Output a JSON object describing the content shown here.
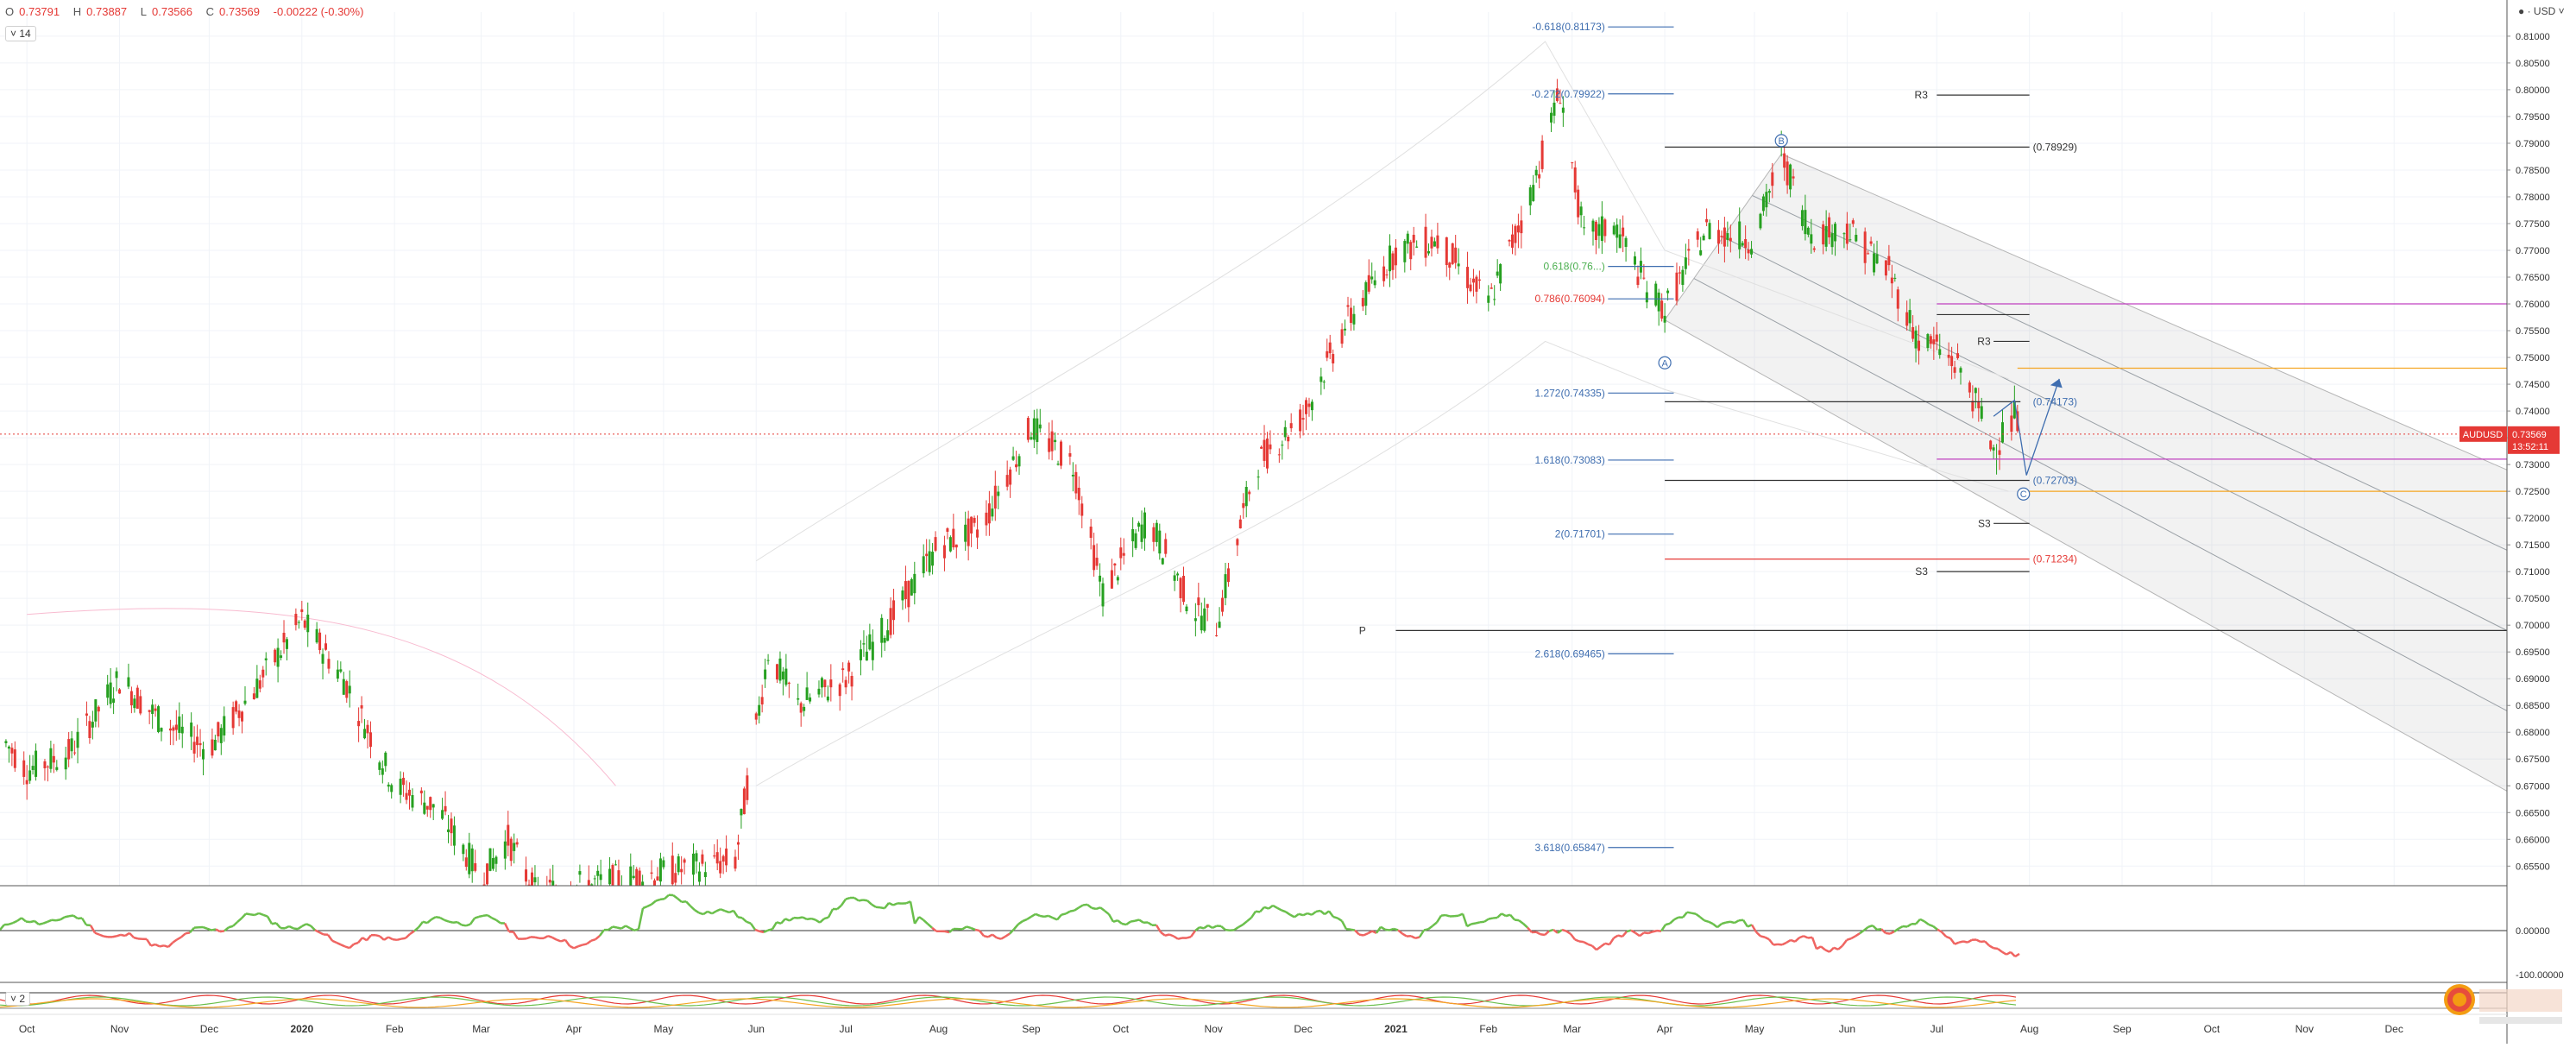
{
  "header": {
    "ohlc": [
      {
        "k": "O",
        "v": "0.73791"
      },
      {
        "k": "H",
        "v": "0.73887"
      },
      {
        "k": "L",
        "v": "0.73566"
      },
      {
        "k": "C",
        "v": "0.73569"
      }
    ],
    "change": "-0.00222 (-0.30%)",
    "indicator_period": "14",
    "indicator2_period": "2",
    "currency": "USD"
  },
  "chart_data": {
    "type": "line",
    "symbol": "AUDUSD",
    "last_price": "0.73569",
    "countdown": "13:52:11",
    "y_ticks": [
      "0.81000",
      "0.80500",
      "0.80000",
      "0.79500",
      "0.79000",
      "0.78500",
      "0.78000",
      "0.77500",
      "0.77000",
      "0.76500",
      "0.76000",
      "0.75500",
      "0.75000",
      "0.74500",
      "0.74000",
      "0.73500",
      "0.73000",
      "0.72500",
      "0.72000",
      "0.71500",
      "0.71000",
      "0.70500",
      "0.70000",
      "0.69500",
      "0.69000",
      "0.68500",
      "0.68000",
      "0.67500",
      "0.67000",
      "0.66500",
      "0.66000",
      "0.65500"
    ],
    "ylim": [
      0.6515,
      0.8145
    ],
    "x_ticks": [
      "Oct",
      "Nov",
      "Dec",
      "2020",
      "Feb",
      "Mar",
      "Apr",
      "May",
      "Jun",
      "Jul",
      "Aug",
      "Sep",
      "Oct",
      "Nov",
      "Dec",
      "2021",
      "Feb",
      "Mar",
      "Apr",
      "May",
      "Jun",
      "Jul",
      "Aug",
      "Sep",
      "Oct",
      "Nov",
      "Dec"
    ],
    "x_tick_dates": [
      "2019-10",
      "2019-11",
      "2019-12",
      "2020-01",
      "2020-02",
      "2020-03",
      "2020-04",
      "2020-05",
      "2020-06",
      "2020-07",
      "2020-08",
      "2020-09",
      "2020-10",
      "2020-11",
      "2020-12",
      "2021-01",
      "2021-02",
      "2021-03",
      "2021-04",
      "2021-05",
      "2021-06",
      "2021-07",
      "2021-08",
      "2021-09",
      "2021-10",
      "2021-11",
      "2021-12"
    ],
    "series": [
      {
        "values": [
          {
            "date": "2019-09-24",
            "close": 0.678
          },
          {
            "date": "2019-10-01",
            "close": 0.673
          },
          {
            "date": "2019-10-15",
            "close": 0.676
          },
          {
            "date": "2019-11-01",
            "close": 0.69
          },
          {
            "date": "2019-11-15",
            "close": 0.682
          },
          {
            "date": "2019-12-01",
            "close": 0.677
          },
          {
            "date": "2019-12-15",
            "close": 0.687
          },
          {
            "date": "2020-01-01",
            "close": 0.701
          },
          {
            "date": "2020-01-15",
            "close": 0.69
          },
          {
            "date": "2020-02-01",
            "close": 0.67
          },
          {
            "date": "2020-02-15",
            "close": 0.666
          },
          {
            "date": "2020-03-01",
            "close": 0.653
          },
          {
            "date": "2020-03-10",
            "close": 0.66
          },
          {
            "date": "2020-03-19",
            "close": 0.65
          },
          {
            "date": "2020-05-25",
            "close": 0.656
          },
          {
            "date": "2020-06-05",
            "close": 0.695
          },
          {
            "date": "2020-06-15",
            "close": 0.685
          },
          {
            "date": "2020-07-01",
            "close": 0.69
          },
          {
            "date": "2020-07-15",
            "close": 0.7
          },
          {
            "date": "2020-08-01",
            "close": 0.715
          },
          {
            "date": "2020-08-15",
            "close": 0.718
          },
          {
            "date": "2020-09-01",
            "close": 0.737
          },
          {
            "date": "2020-09-15",
            "close": 0.73
          },
          {
            "date": "2020-09-25",
            "close": 0.706
          },
          {
            "date": "2020-10-10",
            "close": 0.72
          },
          {
            "date": "2020-10-25",
            "close": 0.703
          },
          {
            "date": "2020-11-02",
            "close": 0.7
          },
          {
            "date": "2020-11-15",
            "close": 0.73
          },
          {
            "date": "2020-12-01",
            "close": 0.739
          },
          {
            "date": "2020-12-15",
            "close": 0.756
          },
          {
            "date": "2021-01-01",
            "close": 0.77
          },
          {
            "date": "2021-01-15",
            "close": 0.772
          },
          {
            "date": "2021-02-01",
            "close": 0.76
          },
          {
            "date": "2021-02-15",
            "close": 0.78
          },
          {
            "date": "2021-02-25",
            "close": 0.8
          },
          {
            "date": "2021-03-05",
            "close": 0.772
          },
          {
            "date": "2021-03-15",
            "close": 0.775
          },
          {
            "date": "2021-03-25",
            "close": 0.764
          },
          {
            "date": "2021-04-01",
            "close": 0.759
          },
          {
            "date": "2021-04-15",
            "close": 0.774
          },
          {
            "date": "2021-05-01",
            "close": 0.772
          },
          {
            "date": "2021-05-10",
            "close": 0.788
          },
          {
            "date": "2021-05-20",
            "close": 0.773
          },
          {
            "date": "2021-06-01",
            "close": 0.774
          },
          {
            "date": "2021-06-15",
            "close": 0.766
          },
          {
            "date": "2021-06-25",
            "close": 0.753
          },
          {
            "date": "2021-07-01",
            "close": 0.752
          },
          {
            "date": "2021-07-10",
            "close": 0.747
          },
          {
            "date": "2021-07-20",
            "close": 0.733
          },
          {
            "date": "2021-07-27",
            "close": 0.739
          },
          {
            "date": "2021-07-29",
            "close": 0.7357
          }
        ]
      }
    ],
    "price_labels": [
      {
        "label": "-0.618(0.81173)",
        "value": 0.81173
      },
      {
        "label": "-0.272(0.79922)",
        "value": 0.79922
      },
      {
        "label": "0.618(0.76...)",
        "value": 0.767
      },
      {
        "label": "0.786(0.76094)",
        "value": 0.76094
      },
      {
        "label": "1.272(0.74335)",
        "value": 0.74335
      },
      {
        "label": "1.618(0.73083)",
        "value": 0.73083
      },
      {
        "label": "2(0.71701)",
        "value": 0.71701
      },
      {
        "label": "2.618(0.69465)",
        "value": 0.69465
      },
      {
        "label": "3.618(0.65847)",
        "value": 0.65847
      },
      {
        "label": "(0.78929)",
        "value": 0.78929
      },
      {
        "label": "(0.74173)",
        "value": 0.74173
      },
      {
        "label": "(0.72703)",
        "value": 0.72703
      },
      {
        "label": "(0.71234)",
        "value": 0.71234
      },
      {
        "label": "R3",
        "value": 0.799
      },
      {
        "label": "R3",
        "value": 0.753
      },
      {
        "label": "S3",
        "value": 0.719
      },
      {
        "label": "S3",
        "value": 0.71
      },
      {
        "label": "P",
        "value": 0.699
      }
    ],
    "wave_labels": [
      "A",
      "B",
      "C"
    ],
    "oscillator": {
      "tick": "0.00000"
    },
    "oscillator2": {
      "tick": "-100.00000"
    }
  }
}
